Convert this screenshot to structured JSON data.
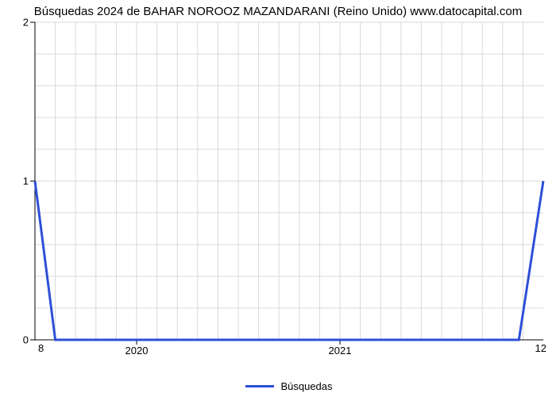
{
  "chart": {
    "type": "line",
    "title": "Búsquedas 2024 de BAHAR NOROOZ MAZANDARANI (Reino Unido) www.datocapital.com",
    "title_fontsize": 15,
    "title_color": "#000000",
    "background_color": "#ffffff",
    "grid_color": "#d9d9d9",
    "axis_color": "#000000",
    "line_color": "#2e4fd6",
    "line_width": 3,
    "tick_color": "#000000",
    "tick_fontsize": 13,
    "ylim": [
      0,
      2
    ],
    "yticks": [
      {
        "v": 0,
        "label": "0"
      },
      {
        "v": 1,
        "label": "1"
      },
      {
        "v": 2,
        "label": "2"
      }
    ],
    "y_minor_count": 4,
    "xlim": [
      2019.5,
      2022.0
    ],
    "xticks": [
      {
        "v": 2020,
        "label": "2020"
      },
      {
        "v": 2021,
        "label": "2021"
      }
    ],
    "x_minor_step": 0.1,
    "lower_left_label": "8",
    "lower_right_label": "12",
    "series": [
      {
        "x": 2019.5,
        "y": 1.0
      },
      {
        "x": 2019.6,
        "y": 0.0
      },
      {
        "x": 2021.88,
        "y": 0.0
      },
      {
        "x": 2022.0,
        "y": 1.0
      }
    ],
    "legend": {
      "label": "Búsquedas",
      "color": "#2e4fd6"
    }
  }
}
